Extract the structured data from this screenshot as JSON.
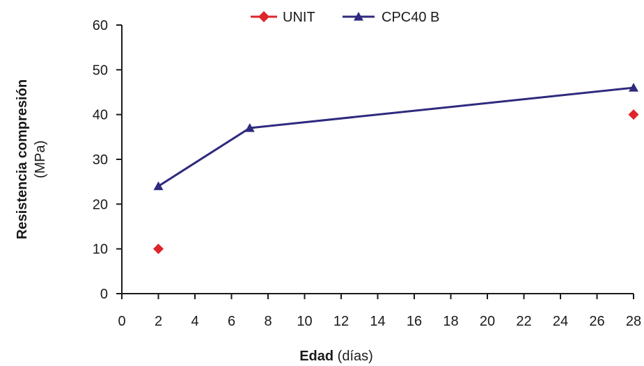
{
  "chart_data": {
    "type": "scatter",
    "xlim": [
      0,
      28
    ],
    "ylim": [
      0,
      60
    ],
    "x_ticks": [
      0,
      2,
      4,
      6,
      8,
      10,
      12,
      14,
      16,
      18,
      20,
      22,
      24,
      26,
      28
    ],
    "y_ticks": [
      0,
      10,
      20,
      30,
      40,
      50,
      60
    ],
    "grid": false,
    "legend_position": "top-center",
    "xlabel": {
      "bold": "Edad",
      "normal": " (días)"
    },
    "ylabel": {
      "bold": "Resistencia compresión",
      "normal": "(MPa)"
    },
    "series": [
      {
        "name": "UNIT",
        "marker": "diamond",
        "line": false,
        "color": "#e0242b",
        "points": [
          {
            "x": 2,
            "y": 10
          },
          {
            "x": 28,
            "y": 40
          }
        ]
      },
      {
        "name": "CPC40 B",
        "marker": "triangle",
        "line": true,
        "color": "#2e2a7e",
        "points": [
          {
            "x": 2,
            "y": 24
          },
          {
            "x": 7,
            "y": 37
          },
          {
            "x": 28,
            "y": 46
          }
        ]
      }
    ]
  }
}
